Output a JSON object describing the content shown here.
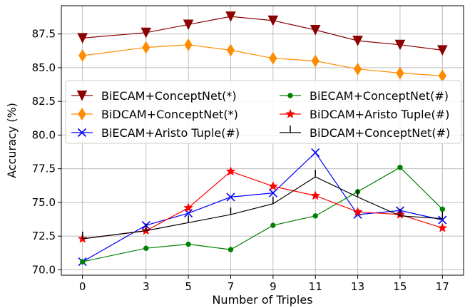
{
  "chart_data": {
    "type": "line",
    "xlabel": "Number of Triples",
    "ylabel": "Accuracy (%)",
    "x": [
      0,
      3,
      5,
      7,
      9,
      11,
      13,
      15,
      17
    ],
    "x_ticks": [
      "0",
      "3",
      "5",
      "7",
      "9",
      "11",
      "13",
      "15",
      "17"
    ],
    "y_ticks": [
      "70.0",
      "72.5",
      "75.0",
      "77.5",
      "80.0",
      "82.5",
      "85.0",
      "87.5"
    ],
    "xlim": [
      -1.0,
      18.0
    ],
    "ylim": [
      69.6,
      89.6
    ],
    "grid": true,
    "legend_position": "center-left, two columns",
    "series": [
      {
        "name": "BiECAM+ConceptNet(*)",
        "color": "#8b0000",
        "marker": "triangle-down",
        "values": [
          87.2,
          87.6,
          88.2,
          88.8,
          88.5,
          87.8,
          87.0,
          86.7,
          86.3
        ]
      },
      {
        "name": "BiDCAM+ConceptNet(*)",
        "color": "#ff8c00",
        "marker": "thin-diamond",
        "values": [
          85.9,
          86.5,
          86.7,
          86.3,
          85.7,
          85.5,
          84.9,
          84.6,
          84.4
        ]
      },
      {
        "name": "BiECAM+Aristo Tuple(#)",
        "color": "#0000ff",
        "marker": "x",
        "values": [
          70.6,
          73.3,
          74.2,
          75.4,
          75.7,
          78.7,
          74.1,
          74.4,
          73.7
        ]
      },
      {
        "name": "BiECAM+ConceptNet(#)",
        "color": "#008000",
        "marker": "point",
        "values": [
          70.6,
          71.6,
          71.9,
          71.5,
          73.3,
          74.0,
          75.8,
          77.6,
          74.5
        ]
      },
      {
        "name": "BiDCAM+Aristo Tuple(#)",
        "color": "#ff0000",
        "marker": "star",
        "values": [
          72.3,
          72.9,
          74.6,
          77.3,
          76.2,
          75.5,
          74.3,
          74.1,
          73.1
        ]
      },
      {
        "name": "BiDCAM+ConceptNet(#)",
        "color": "#000000",
        "marker": "tickup",
        "values": [
          72.3,
          72.9,
          73.5,
          74.1,
          74.9,
          76.9,
          75.4,
          74.0,
          73.8
        ]
      }
    ]
  }
}
